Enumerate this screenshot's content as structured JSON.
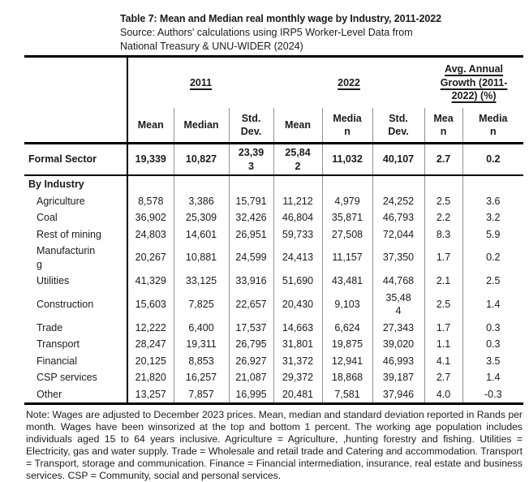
{
  "caption": {
    "title": "Table 7: Mean and Median real monthly wage by Industry, 2011-2022",
    "source_line1": "Source: Authors' calculations using IRP5 Worker-Level Data from",
    "source_line2": "National Treasury & UNU-WIDER (2024)"
  },
  "table": {
    "year_2011_header": "2011",
    "year_2022_header": "2022",
    "growth_header": "Avg. Annual\nGrowth (2011-\n2022) (%)",
    "col_headers": [
      "Mean",
      "Median",
      "Std.\nDev.",
      "Mean",
      "Media\nn",
      "Std.\nDev.",
      "Mea\nn",
      "Media\nn"
    ],
    "rows": [
      {
        "type": "formal",
        "label": "Formal Sector",
        "values": [
          "19,339",
          "10,827",
          "23,39\n3",
          "25,84\n2",
          "11,032",
          "40,107",
          "2.7",
          "0.2"
        ]
      },
      {
        "type": "section",
        "label": "By Industry",
        "values": [
          "",
          "",
          "",
          "",
          "",
          "",
          "",
          ""
        ]
      },
      {
        "type": "industry",
        "label": "Agriculture",
        "values": [
          "8,578",
          "3,386",
          "15,791",
          "11,212",
          "4,979",
          "24,252",
          "2.5",
          "3.6"
        ]
      },
      {
        "type": "industry",
        "label": "Coal",
        "values": [
          "36,902",
          "25,309",
          "32,426",
          "46,804",
          "35,871",
          "46,793",
          "2.2",
          "3.2"
        ]
      },
      {
        "type": "industry",
        "label": "Rest of mining",
        "values": [
          "24,803",
          "14,601",
          "26,951",
          "59,733",
          "27,508",
          "72,044",
          "8.3",
          "5.9"
        ]
      },
      {
        "type": "industry",
        "label": "Manufacturin\ng",
        "values": [
          "20,267",
          "10,881",
          "24,599",
          "24,413",
          "11,157",
          "37,350",
          "1.7",
          "0.2"
        ]
      },
      {
        "type": "industry",
        "label": "Utilities",
        "values": [
          "41,329",
          "33,125",
          "33,916",
          "51,690",
          "43,481",
          "44,768",
          "2.1",
          "2.5"
        ]
      },
      {
        "type": "industry",
        "label": "Construction",
        "values": [
          "15,603",
          "7,825",
          "22,657",
          "20,430",
          "9,103",
          "35,48\n4",
          "2.5",
          "1.4"
        ]
      },
      {
        "type": "industry",
        "label": "Trade",
        "values": [
          "12,222",
          "6,400",
          "17,537",
          "14,663",
          "6,624",
          "27,343",
          "1.7",
          "0.3"
        ]
      },
      {
        "type": "industry",
        "label": "Transport",
        "values": [
          "28,247",
          "19,311",
          "26,795",
          "31,801",
          "19,875",
          "39,020",
          "1.1",
          "0.3"
        ]
      },
      {
        "type": "industry",
        "label": "Financial",
        "values": [
          "20,125",
          "8,853",
          "26,927",
          "31,372",
          "12,941",
          "46,993",
          "4.1",
          "3.5"
        ]
      },
      {
        "type": "industry",
        "label": "CSP services",
        "values": [
          "21,820",
          "16,257",
          "21,087",
          "29,372",
          "18,868",
          "39,187",
          "2.7",
          "1.4"
        ]
      },
      {
        "type": "industry",
        "label": "Other",
        "values": [
          "13,257",
          "7,857",
          "16,995",
          "20,481",
          "7,581",
          "37,946",
          "4.0",
          "-0.3"
        ]
      }
    ]
  },
  "note": "Note: Wages are adjusted to December 2023 prices. Mean, median and standard deviation reported in Rands per month. Wages have been winsorized at the top and bottom 1 percent. The working age population includes individuals aged 15 to 64 years inclusive. Agriculture = Agriculture, ,hunting forestry and fishing. Utilities = Electricity, gas and water supply. Trade = Wholesale and retail trade and Catering and accommodation. Transport = Transport, storage and communication. Finance = Financial intermediation, insurance, real estate and business services. CSP = Community, social and personal services.",
  "colors": {
    "text": "#1b1b1b",
    "border_strong": "#000000",
    "border_light": "#909090"
  }
}
